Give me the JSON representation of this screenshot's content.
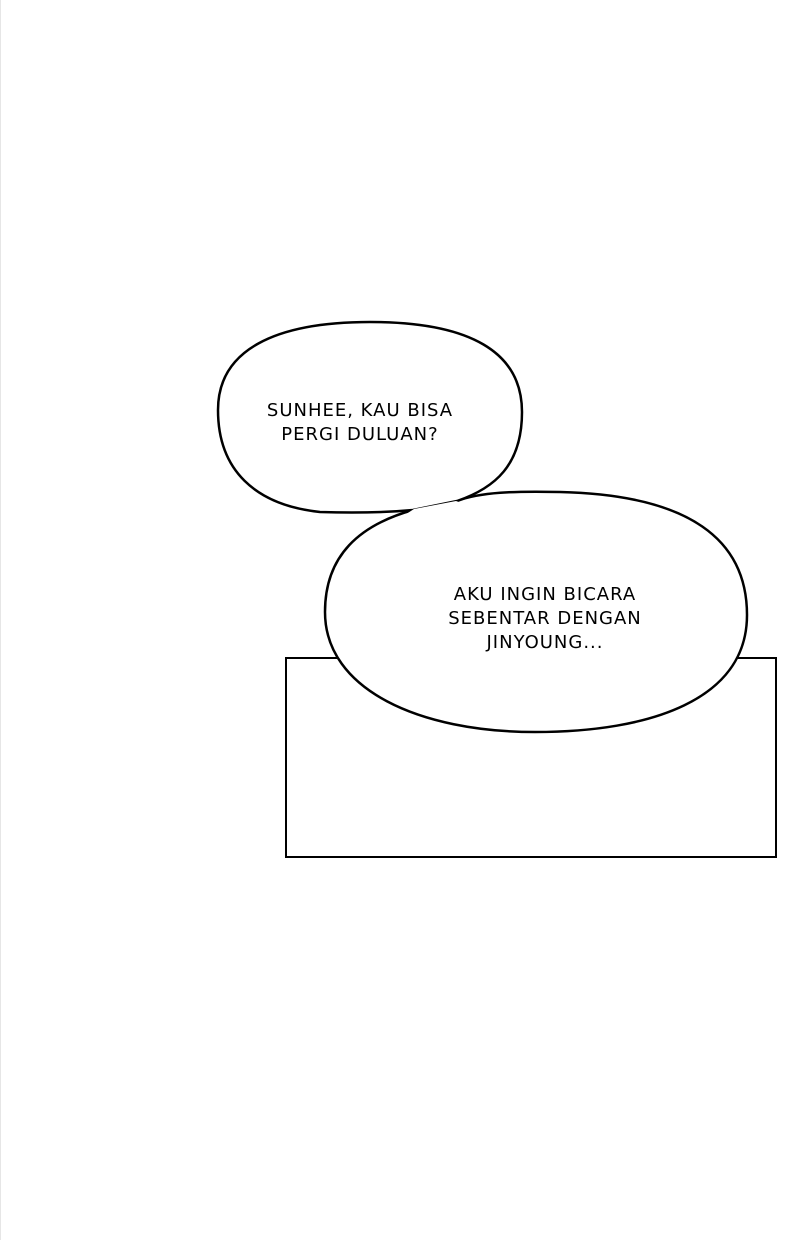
{
  "bubble_1": {
    "lines": [
      "SUNHEE, KAU BISA",
      "PERGI DULUAN?"
    ]
  },
  "bubble_2": {
    "lines": [
      "AKU INGIN BICARA",
      "SEBENTAR DENGAN",
      "JINYOUNG..."
    ]
  },
  "colors": {
    "background": "#ffffff",
    "outline": "#000000"
  }
}
